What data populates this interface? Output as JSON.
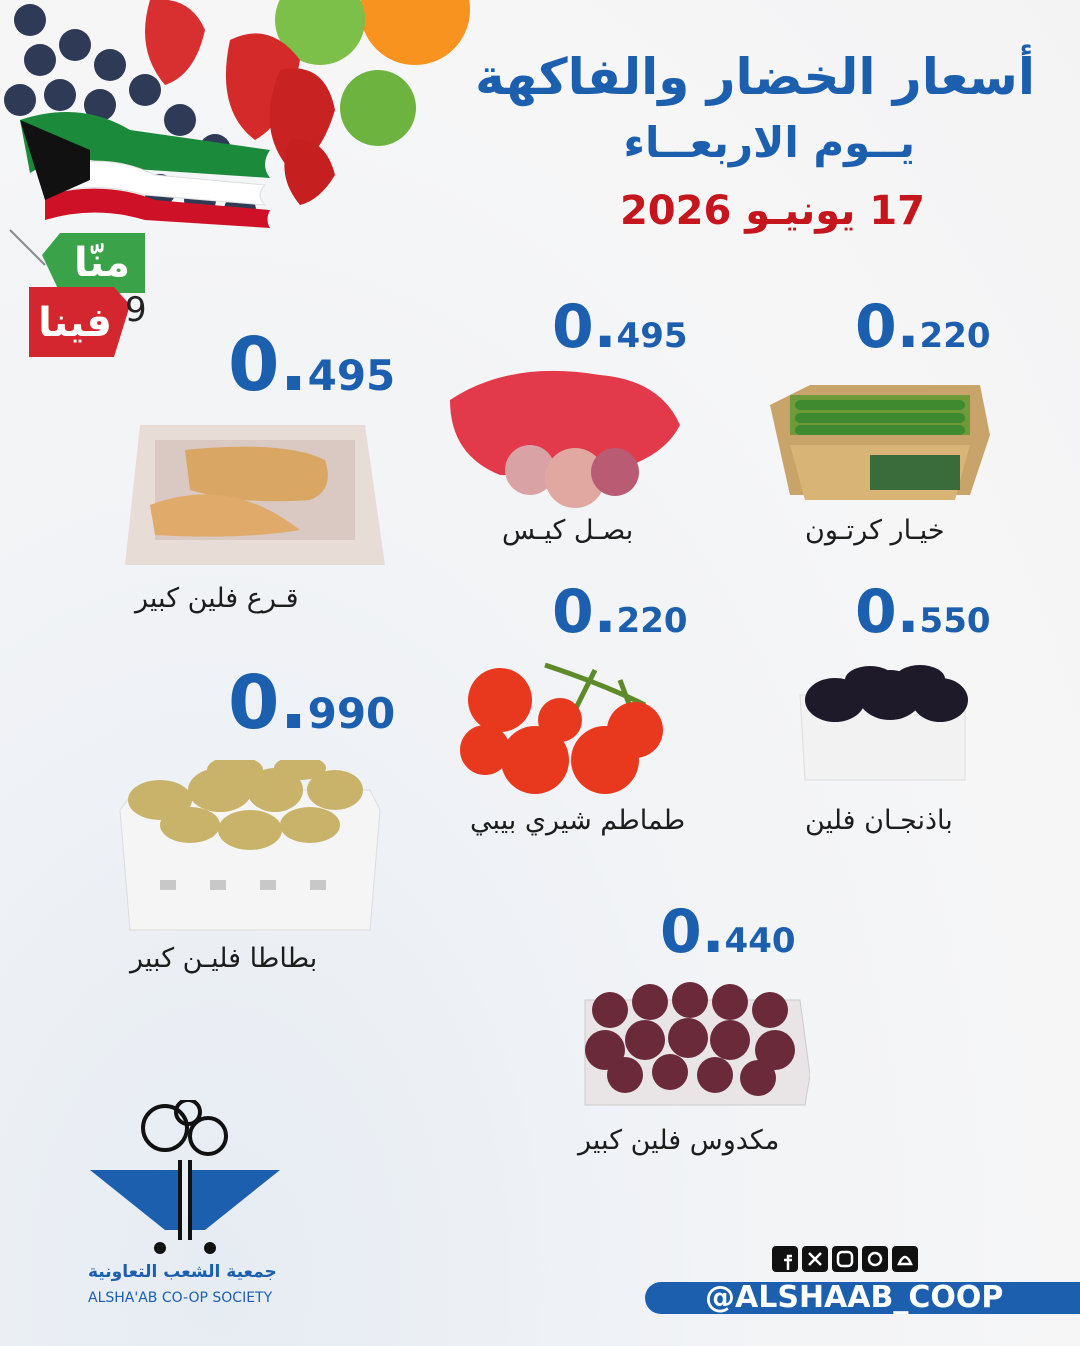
{
  "header": {
    "title": "أسعار الخضار والفاكهة",
    "day": "يــوم الاربعــاء",
    "date": "17 يونيـو 2026"
  },
  "badges": {
    "top": "منّا",
    "connector": "9",
    "bottom": "فينا"
  },
  "products": [
    {
      "name": "خيـار كرتـون",
      "price": "0.220"
    },
    {
      "name": "بصـل كيـس",
      "price": "0.495"
    },
    {
      "name": "قـرع فلين كبير",
      "price": "0.495"
    },
    {
      "name": "باذنجـان فلين",
      "price": "0.550"
    },
    {
      "name": "طماطم شيري بيبي",
      "price": "0.220"
    },
    {
      "name": "بطاطا فليـن كبير",
      "price": "0.990"
    },
    {
      "name": "مكدوس فلين كبير",
      "price": "0.440"
    }
  ],
  "logo": {
    "arabic": "جمعية الشعب التعاونية",
    "english": "ALSHA'AB CO-OP SOCIETY"
  },
  "social": {
    "handle": "@ALSHAAB_COOP"
  }
}
